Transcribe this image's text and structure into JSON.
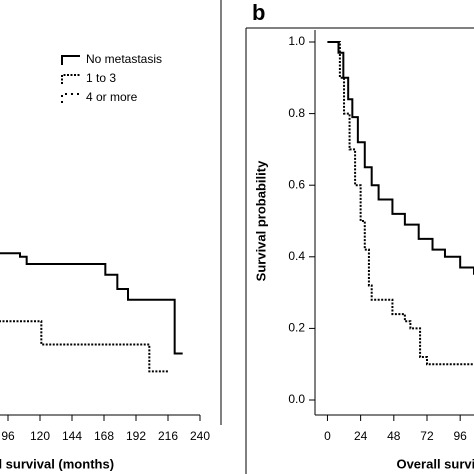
{
  "chart_data": [
    {
      "type": "line",
      "step": true,
      "x_label": "Overall survival (months)",
      "xlim": [
        84,
        240
      ],
      "xticks": [
        96,
        120,
        144,
        168,
        192,
        216,
        240
      ],
      "ylim": [
        0,
        1
      ],
      "legend": true,
      "series": [
        {
          "name": "No metastasis",
          "color": "#000000",
          "dash": "solid",
          "x": [
            84,
            105,
            110,
            169,
            178,
            186,
            221,
            227
          ],
          "values": [
            0.41,
            0.4,
            0.38,
            0.35,
            0.31,
            0.28,
            0.13,
            0.13
          ]
        },
        {
          "name": "1 to 3",
          "color": "#000000",
          "dash": "dotted",
          "x": [
            84,
            121,
            202,
            217
          ],
          "values": [
            0.22,
            0.155,
            0.08,
            0.08
          ]
        },
        {
          "name": "4 or more",
          "color": "#000000",
          "dash": "dashed",
          "x": [],
          "values": []
        }
      ]
    },
    {
      "type": "line",
      "step": true,
      "panel": "b",
      "x_label": "Overall survival (months)",
      "y_label": "Survival probability",
      "xlim": [
        -9,
        106
      ],
      "xticks": [
        0,
        24,
        48,
        72,
        96
      ],
      "ylim": [
        0,
        1
      ],
      "yticks": [
        {
          "value": 0,
          "label": "0.0"
        },
        0.2,
        0.4,
        0.6,
        0.8,
        {
          "value": 1,
          "label": "1.0"
        }
      ],
      "series": [
        {
          "name": "No metastasis",
          "color": "#000000",
          "dash": "solid",
          "x": [
            0,
            5,
            8,
            11.5,
            15,
            18,
            22,
            27,
            32,
            37,
            47,
            56,
            66,
            76,
            85,
            96,
            106
          ],
          "values": [
            1,
            1,
            0.97,
            0.9,
            0.84,
            0.79,
            0.72,
            0.65,
            0.6,
            0.56,
            0.52,
            0.49,
            0.45,
            0.42,
            0.4,
            0.37,
            0.35
          ]
        },
        {
          "name": "1 to 3",
          "color": "#000000",
          "dash": "dotted",
          "x": [
            0,
            5,
            9,
            12,
            16,
            20,
            24,
            27,
            30,
            32,
            47,
            56,
            60,
            67,
            72,
            106
          ],
          "values": [
            1,
            1,
            0.9,
            0.8,
            0.7,
            0.6,
            0.5,
            0.42,
            0.32,
            0.28,
            0.24,
            0.22,
            0.2,
            0.12,
            0.1,
            0.1
          ]
        }
      ]
    }
  ]
}
